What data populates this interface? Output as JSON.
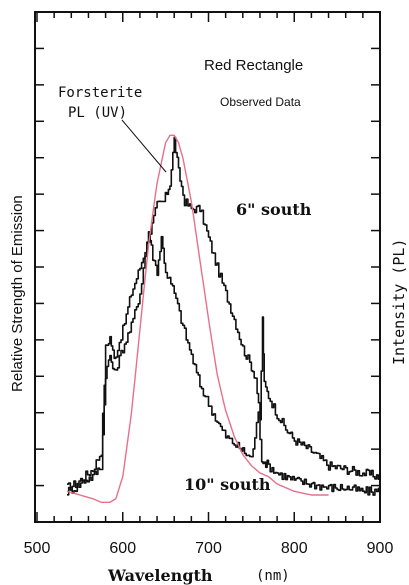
{
  "chart_data": {
    "type": "line",
    "title": "Red Rectangle",
    "subtitle": "Observed Data",
    "xlabel": "Wavelength",
    "xunit": "(nm)",
    "ylabel_left": "Relative Strength of Emission",
    "ylabel_right": "Intensity (PL)",
    "xlim": [
      500,
      900
    ],
    "ylim": [
      0,
      1
    ],
    "x_ticks": [
      500,
      600,
      700,
      800,
      900
    ],
    "grid": false,
    "series": [
      {
        "name": "6\" south",
        "color": "#111111",
        "x": [
          535,
          545,
          555,
          565,
          575,
          580,
          585,
          590,
          600,
          610,
          620,
          630,
          640,
          648,
          655,
          660,
          665,
          672,
          680,
          690,
          700,
          710,
          720,
          730,
          740,
          750,
          755,
          760,
          763,
          765,
          770,
          780,
          790,
          800,
          820,
          840,
          860,
          880,
          900
        ],
        "y": [
          0.02,
          0.03,
          0.05,
          0.07,
          0.12,
          0.4,
          0.43,
          0.37,
          0.45,
          0.55,
          0.62,
          0.7,
          0.79,
          0.8,
          0.85,
          0.97,
          0.88,
          0.8,
          0.78,
          0.78,
          0.7,
          0.62,
          0.55,
          0.48,
          0.4,
          0.35,
          0.32,
          0.2,
          0.48,
          0.3,
          0.27,
          0.22,
          0.18,
          0.15,
          0.12,
          0.08,
          0.07,
          0.06,
          0.05
        ]
      },
      {
        "name": "10\" south",
        "color": "#111111",
        "x": [
          535,
          545,
          555,
          565,
          575,
          580,
          585,
          590,
          600,
          610,
          620,
          630,
          635,
          640,
          645,
          650,
          660,
          670,
          680,
          690,
          700,
          710,
          720,
          730,
          740,
          750,
          758,
          762,
          765,
          770,
          780,
          800,
          820,
          840,
          860,
          880,
          900
        ],
        "y": [
          0.01,
          0.02,
          0.04,
          0.05,
          0.08,
          0.33,
          0.38,
          0.33,
          0.4,
          0.46,
          0.55,
          0.72,
          0.65,
          0.61,
          0.7,
          0.61,
          0.55,
          0.46,
          0.38,
          0.3,
          0.25,
          0.2,
          0.16,
          0.14,
          0.12,
          0.1,
          0.22,
          0.1,
          0.09,
          0.08,
          0.06,
          0.04,
          0.03,
          0.02,
          0.02,
          0.01,
          0.01
        ]
      },
      {
        "name": "Forsterite PL (UV)",
        "color": "#e8708a",
        "x": [
          535,
          550,
          565,
          575,
          585,
          592,
          600,
          610,
          620,
          630,
          640,
          650,
          655,
          660,
          665,
          670,
          680,
          690,
          700,
          710,
          720,
          730,
          740,
          750,
          760,
          770,
          780,
          800,
          820,
          840
        ],
        "y": [
          0.01,
          0.0,
          -0.01,
          -0.02,
          -0.02,
          -0.01,
          0.05,
          0.22,
          0.45,
          0.68,
          0.85,
          0.96,
          0.98,
          0.98,
          0.96,
          0.92,
          0.8,
          0.64,
          0.48,
          0.33,
          0.23,
          0.16,
          0.11,
          0.08,
          0.06,
          0.05,
          0.03,
          0.01,
          0.0,
          0.0
        ]
      }
    ],
    "annotations": {
      "six_south": "6\" south",
      "ten_south": "10\" south",
      "forsterite_line1": "Forsterite",
      "forsterite_line2": "PL (UV)"
    }
  }
}
